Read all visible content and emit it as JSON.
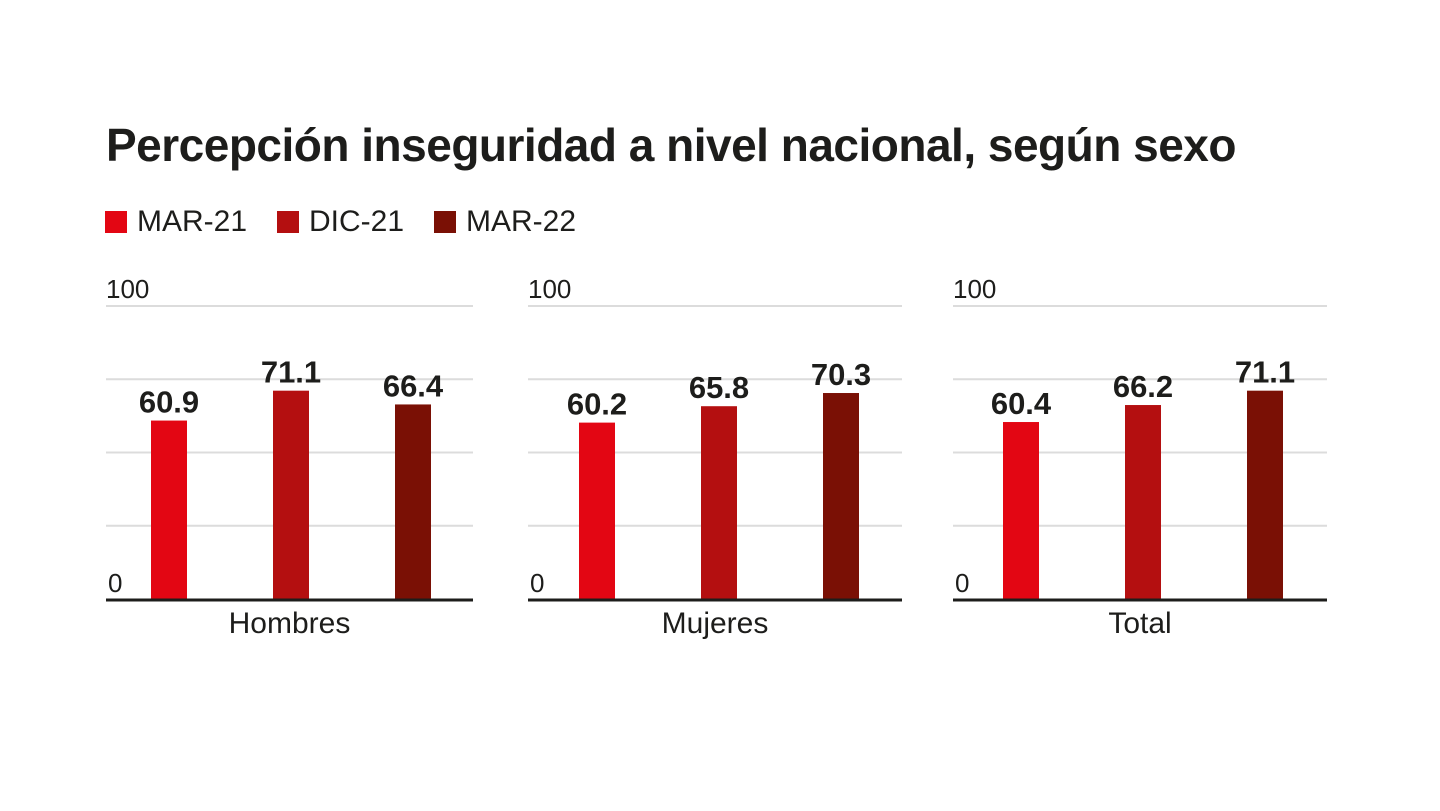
{
  "chart_data": {
    "type": "bar",
    "title": "Percepción inseguridad a nivel nacional, según sexo",
    "xlabel": "",
    "ylabel": "",
    "ylim": [
      0,
      100
    ],
    "yticks_labeled": [
      "100",
      "0"
    ],
    "grid": true,
    "legend_position": "top-left",
    "categories": [
      "Hombres",
      "Mujeres",
      "Total"
    ],
    "series": [
      {
        "name": "MAR-21",
        "color": "#e30613",
        "values": [
          60.9,
          60.2,
          60.4
        ]
      },
      {
        "name": "DIC-21",
        "color": "#b40f10",
        "values": [
          71.1,
          65.8,
          66.2
        ]
      },
      {
        "name": "MAR-22",
        "color": "#7a1005",
        "values": [
          66.4,
          70.3,
          71.1
        ]
      }
    ]
  }
}
